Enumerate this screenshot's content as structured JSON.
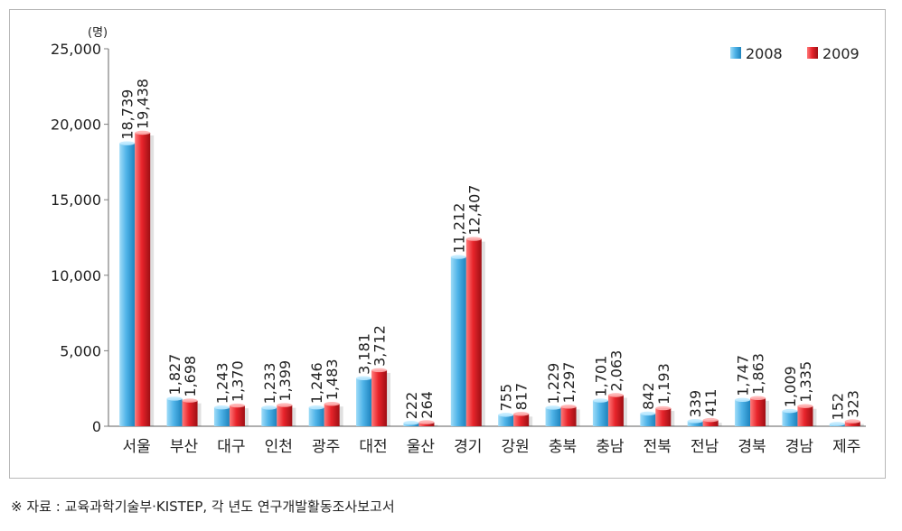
{
  "chart_data": {
    "type": "bar",
    "unit_label": "(명)",
    "categories": [
      "서울",
      "부산",
      "대구",
      "인천",
      "광주",
      "대전",
      "울산",
      "경기",
      "강원",
      "충북",
      "충남",
      "전북",
      "전남",
      "경북",
      "경남",
      "제주"
    ],
    "series": [
      {
        "name": "2008",
        "values": [
          18739,
          1827,
          1243,
          1233,
          1246,
          3181,
          222,
          11212,
          755,
          1229,
          1701,
          842,
          339,
          1747,
          1009,
          152
        ],
        "labels": [
          "18,739",
          "1,827",
          "1,243",
          "1,233",
          "1,246",
          "3,181",
          "222",
          "11,212",
          "755",
          "1,229",
          "1,701",
          "842",
          "339",
          "1,747",
          "1,009",
          "152"
        ],
        "color": "#4fb3e8"
      },
      {
        "name": "2009",
        "values": [
          19438,
          1698,
          1370,
          1399,
          1483,
          3712,
          264,
          12407,
          817,
          1297,
          2063,
          1193,
          411,
          1863,
          1335,
          323
        ],
        "labels": [
          "19,438",
          "1,698",
          "1,370",
          "1,399",
          "1,483",
          "3,712",
          "264",
          "12,407",
          "817",
          "1,297",
          "2,063",
          "1,193",
          "411",
          "1,863",
          "1,335",
          "323"
        ],
        "color": "#e8242b"
      }
    ],
    "ylim": [
      0,
      25000
    ],
    "yticks": [
      0,
      5000,
      10000,
      15000,
      20000,
      25000
    ],
    "ytick_labels": [
      "0",
      "5,000",
      "10,000",
      "15,000",
      "20,000",
      "25,000"
    ],
    "legend": "top-right",
    "grid": false
  },
  "source_note": "※ 자료 : 교육과학기술부·KISTEP, 각 년도 연구개발활동조사보고서"
}
